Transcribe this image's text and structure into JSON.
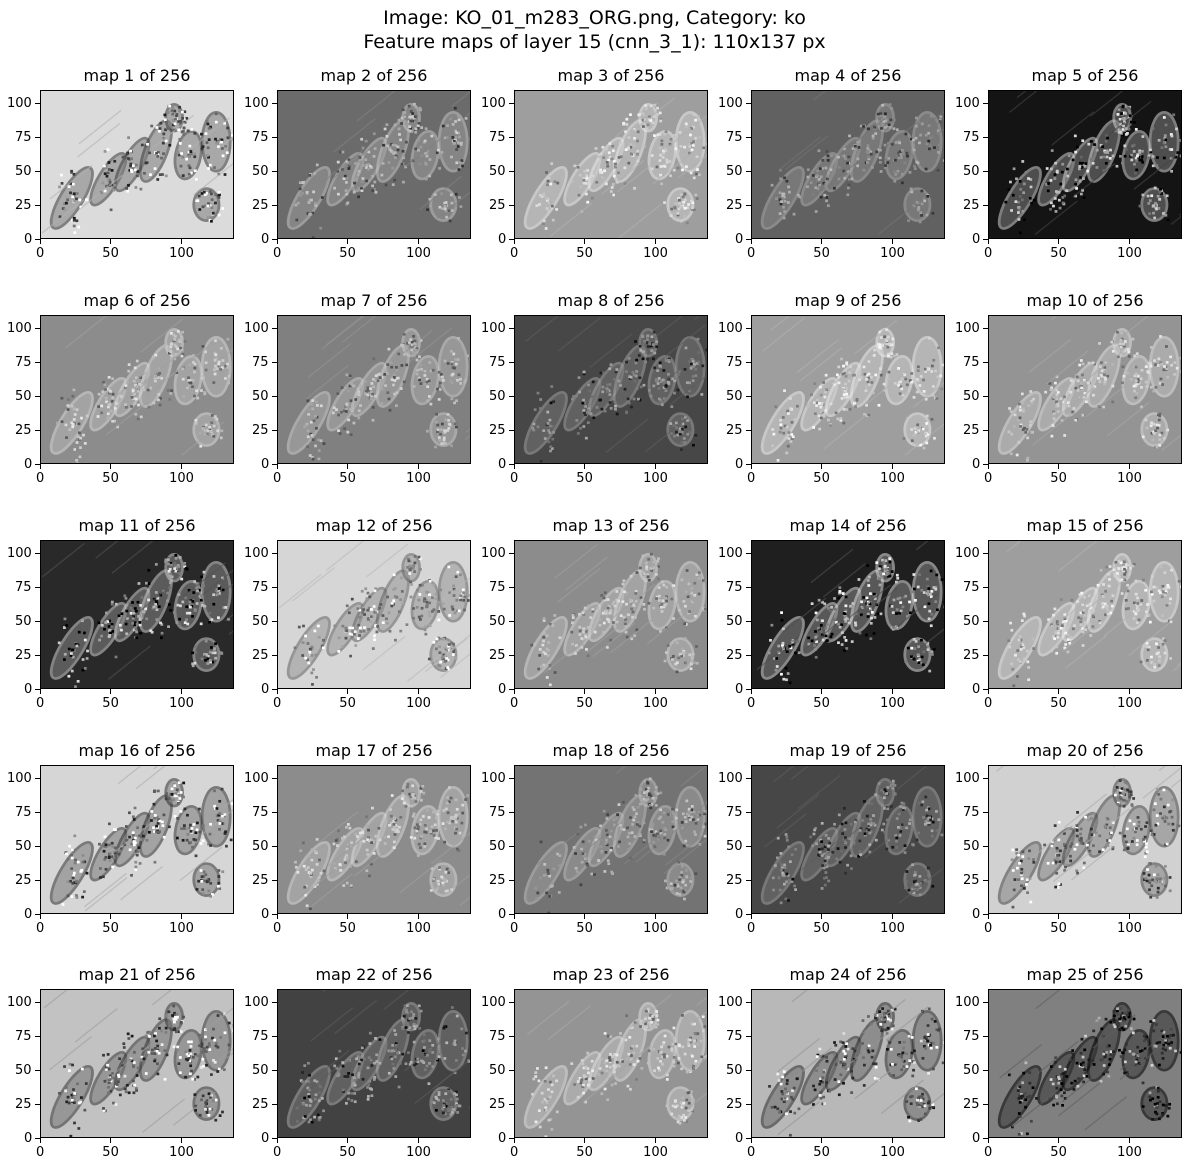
{
  "figure": {
    "title_line1": "Image: KO_01_m283_ORG.png, Category: ko",
    "title_line2": "Feature maps of layer 15 (cnn_3_1): 110x137 px"
  },
  "colormap": "gray",
  "chart_data": {
    "type": "heatmap",
    "layout": {
      "rows": 5,
      "cols": 5
    },
    "map_height": 110,
    "map_width": 137,
    "xlim": [
      0,
      137
    ],
    "ylim": [
      110,
      0
    ],
    "xticks": [
      0,
      50,
      100
    ],
    "yticks": [
      0,
      25,
      50,
      75,
      100
    ],
    "panels": [
      {
        "title": "map 1 of 256",
        "base": 0.86,
        "contrast": 0.65,
        "invert": true
      },
      {
        "title": "map 2 of 256",
        "base": 0.42,
        "contrast": 0.35,
        "invert": false
      },
      {
        "title": "map 3 of 256",
        "base": 0.62,
        "contrast": 0.3,
        "invert": false
      },
      {
        "title": "map 4 of 256",
        "base": 0.38,
        "contrast": 0.3,
        "invert": false
      },
      {
        "title": "map 5 of 256",
        "base": 0.08,
        "contrast": 0.75,
        "invert": false
      },
      {
        "title": "map 6 of 256",
        "base": 0.55,
        "contrast": 0.3,
        "invert": false
      },
      {
        "title": "map 7 of 256",
        "base": 0.5,
        "contrast": 0.3,
        "invert": false
      },
      {
        "title": "map 8 of 256",
        "base": 0.28,
        "contrast": 0.35,
        "invert": false
      },
      {
        "title": "map 9 of 256",
        "base": 0.62,
        "contrast": 0.3,
        "invert": false
      },
      {
        "title": "map 10 of 256",
        "base": 0.58,
        "contrast": 0.3,
        "invert": false
      },
      {
        "title": "map 11 of 256",
        "base": 0.16,
        "contrast": 0.65,
        "invert": false
      },
      {
        "title": "map 12 of 256",
        "base": 0.84,
        "contrast": 0.45,
        "invert": true
      },
      {
        "title": "map 13 of 256",
        "base": 0.55,
        "contrast": 0.3,
        "invert": false
      },
      {
        "title": "map 14 of 256",
        "base": 0.12,
        "contrast": 0.75,
        "invert": false
      },
      {
        "title": "map 15 of 256",
        "base": 0.62,
        "contrast": 0.3,
        "invert": false
      },
      {
        "title": "map 16 of 256",
        "base": 0.84,
        "contrast": 0.65,
        "invert": true
      },
      {
        "title": "map 17 of 256",
        "base": 0.55,
        "contrast": 0.3,
        "invert": false
      },
      {
        "title": "map 18 of 256",
        "base": 0.45,
        "contrast": 0.3,
        "invert": false
      },
      {
        "title": "map 19 of 256",
        "base": 0.28,
        "contrast": 0.35,
        "invert": false
      },
      {
        "title": "map 20 of 256",
        "base": 0.82,
        "contrast": 0.55,
        "invert": true
      },
      {
        "title": "map 21 of 256",
        "base": 0.76,
        "contrast": 0.55,
        "invert": true
      },
      {
        "title": "map 22 of 256",
        "base": 0.26,
        "contrast": 0.4,
        "invert": false
      },
      {
        "title": "map 23 of 256",
        "base": 0.58,
        "contrast": 0.3,
        "invert": false
      },
      {
        "title": "map 24 of 256",
        "base": 0.72,
        "contrast": 0.55,
        "invert": true
      },
      {
        "title": "map 25 of 256",
        "base": 0.5,
        "contrast": 0.5,
        "invert": true
      }
    ]
  }
}
